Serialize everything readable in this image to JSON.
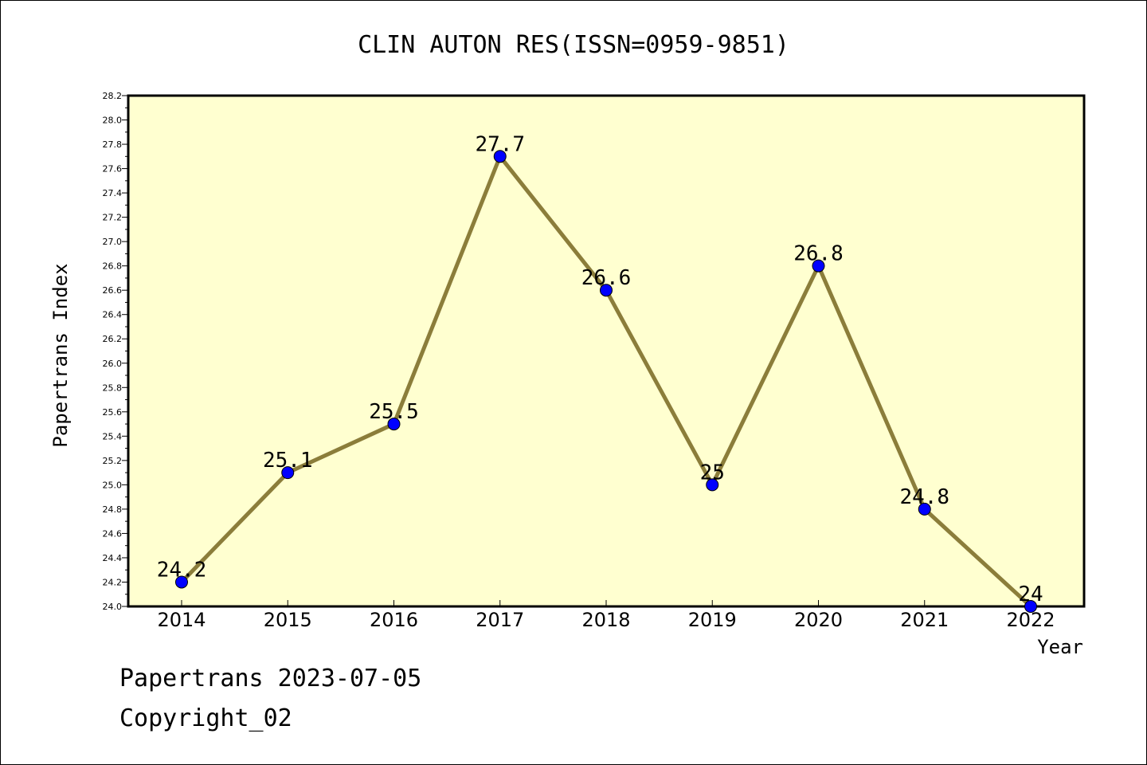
{
  "chart_data": {
    "type": "line",
    "title": "CLIN AUTON RES(ISSN=0959-9851)",
    "xlabel": "Year",
    "ylabel": "Papertrans Index",
    "categories": [
      "2014",
      "2015",
      "2016",
      "2017",
      "2018",
      "2019",
      "2020",
      "2021",
      "2022"
    ],
    "values": [
      24.2,
      25.1,
      25.5,
      27.7,
      26.6,
      25.0,
      26.8,
      24.8,
      24.0
    ],
    "data_labels": [
      "24.2",
      "25.1",
      "25.5",
      "27.7",
      "26.6",
      "25",
      "26.8",
      "24.8",
      "24"
    ],
    "ylim": [
      24.0,
      28.2
    ],
    "yticks": [
      "24.0",
      "24.2",
      "24.4",
      "24.6",
      "24.8",
      "25.0",
      "25.2",
      "25.4",
      "25.6",
      "25.8",
      "26.0",
      "26.2",
      "26.4",
      "26.6",
      "26.8",
      "27.0",
      "27.2",
      "27.4",
      "27.6",
      "27.8",
      "28.0",
      "28.2"
    ],
    "grid": false,
    "colors": {
      "plot_background": "#ffffd0",
      "line": "#8b7d3a",
      "marker": "#0000ff"
    }
  },
  "footer": {
    "line1": "Papertrans 2023-07-05",
    "line2": "Copyright_02"
  }
}
